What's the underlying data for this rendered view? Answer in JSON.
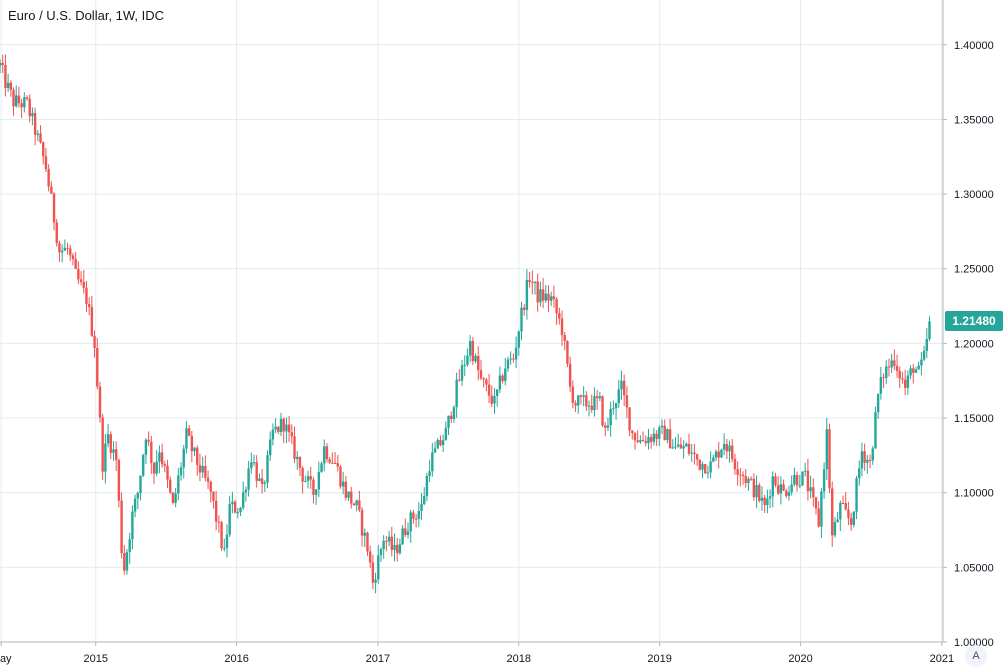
{
  "legend": {
    "title": "Euro / U.S. Dollar, 1W, IDC"
  },
  "price_label": "1.21480",
  "auto_button": "A",
  "colors": {
    "up": "#26a69a",
    "down": "#ef5350",
    "grid": "#e1ecf2",
    "axis": "#b2b5be",
    "text": "#131722"
  },
  "chart_data": {
    "type": "candlestick",
    "title": "Euro / U.S. Dollar, 1W, IDC",
    "xlabel": "",
    "ylabel": "",
    "ylim": [
      1.0,
      1.43
    ],
    "xlim": [
      "2014-04-28",
      "2021-01-04"
    ],
    "grid": true,
    "price_scale": "right",
    "y_ticks": [
      "1.00000",
      "1.05000",
      "1.10000",
      "1.15000",
      "1.20000",
      "1.25000",
      "1.30000",
      "1.35000",
      "1.40000"
    ],
    "x_ticks": [
      {
        "date": "2014-05-01",
        "label": "May"
      },
      {
        "date": "2015-01-01",
        "label": "2015"
      },
      {
        "date": "2016-01-01",
        "label": "2016"
      },
      {
        "date": "2017-01-01",
        "label": "2017"
      },
      {
        "date": "2018-01-01",
        "label": "2018"
      },
      {
        "date": "2019-01-01",
        "label": "2019"
      },
      {
        "date": "2020-01-01",
        "label": "2020"
      },
      {
        "date": "2021-01-01",
        "label": "2021"
      }
    ],
    "last_price": 1.2148,
    "close_path": [
      [
        "2014-04-28",
        1.386
      ],
      [
        "2014-05-12",
        1.375
      ],
      [
        "2014-06-02",
        1.362
      ],
      [
        "2014-07-07",
        1.36
      ],
      [
        "2014-07-28",
        1.343
      ],
      [
        "2014-08-25",
        1.318
      ],
      [
        "2014-09-08",
        1.295
      ],
      [
        "2014-09-29",
        1.262
      ],
      [
        "2014-10-20",
        1.263
      ],
      [
        "2014-11-10",
        1.245
      ],
      [
        "2014-12-08",
        1.23
      ],
      [
        "2014-12-29",
        1.2
      ],
      [
        "2015-01-19",
        1.12
      ],
      [
        "2015-02-02",
        1.138
      ],
      [
        "2015-02-23",
        1.122
      ],
      [
        "2015-03-09",
        1.063
      ],
      [
        "2015-03-16",
        1.05
      ],
      [
        "2015-04-06",
        1.085
      ],
      [
        "2015-04-20",
        1.1
      ],
      [
        "2015-05-11",
        1.14
      ],
      [
        "2015-06-01",
        1.115
      ],
      [
        "2015-06-15",
        1.13
      ],
      [
        "2015-07-20",
        1.09
      ],
      [
        "2015-08-24",
        1.138
      ],
      [
        "2015-09-21",
        1.12
      ],
      [
        "2015-10-26",
        1.1
      ],
      [
        "2015-11-30",
        1.058
      ],
      [
        "2015-12-14",
        1.09
      ],
      [
        "2016-01-11",
        1.09
      ],
      [
        "2016-02-08",
        1.125
      ],
      [
        "2016-03-07",
        1.1
      ],
      [
        "2016-04-04",
        1.14
      ],
      [
        "2016-05-02",
        1.147
      ],
      [
        "2016-06-20",
        1.112
      ],
      [
        "2016-07-18",
        1.1
      ],
      [
        "2016-08-15",
        1.13
      ],
      [
        "2016-09-12",
        1.12
      ],
      [
        "2016-10-10",
        1.1
      ],
      [
        "2016-11-07",
        1.09
      ],
      [
        "2016-12-05",
        1.063
      ],
      [
        "2016-12-19",
        1.04
      ],
      [
        "2017-01-16",
        1.07
      ],
      [
        "2017-02-13",
        1.06
      ],
      [
        "2017-03-20",
        1.08
      ],
      [
        "2017-04-24",
        1.09
      ],
      [
        "2017-05-15",
        1.12
      ],
      [
        "2017-06-26",
        1.14
      ],
      [
        "2017-07-24",
        1.17
      ],
      [
        "2017-08-28",
        1.2
      ],
      [
        "2017-09-25",
        1.175
      ],
      [
        "2017-10-30",
        1.16
      ],
      [
        "2017-11-27",
        1.185
      ],
      [
        "2017-12-18",
        1.19
      ],
      [
        "2018-01-08",
        1.22
      ],
      [
        "2018-01-29",
        1.245
      ],
      [
        "2018-02-19",
        1.232
      ],
      [
        "2018-03-26",
        1.23
      ],
      [
        "2018-04-23",
        1.21
      ],
      [
        "2018-05-14",
        1.17
      ],
      [
        "2018-05-28",
        1.16
      ],
      [
        "2018-06-25",
        1.16
      ],
      [
        "2018-07-30",
        1.16
      ],
      [
        "2018-08-13",
        1.14
      ],
      [
        "2018-09-03",
        1.16
      ],
      [
        "2018-09-24",
        1.17
      ],
      [
        "2018-10-22",
        1.14
      ],
      [
        "2018-11-12",
        1.135
      ],
      [
        "2018-12-10",
        1.138
      ],
      [
        "2019-01-14",
        1.14
      ],
      [
        "2019-02-11",
        1.13
      ],
      [
        "2019-03-11",
        1.13
      ],
      [
        "2019-04-15",
        1.12
      ],
      [
        "2019-05-13",
        1.118
      ],
      [
        "2019-06-17",
        1.135
      ],
      [
        "2019-07-15",
        1.12
      ],
      [
        "2019-08-12",
        1.11
      ],
      [
        "2019-09-09",
        1.1
      ],
      [
        "2019-09-30",
        1.09
      ],
      [
        "2019-10-21",
        1.11
      ],
      [
        "2019-11-18",
        1.1
      ],
      [
        "2019-12-16",
        1.11
      ],
      [
        "2020-01-13",
        1.11
      ],
      [
        "2020-02-17",
        1.08
      ],
      [
        "2020-03-09",
        1.14
      ],
      [
        "2020-03-23",
        1.07
      ],
      [
        "2020-04-13",
        1.09
      ],
      [
        "2020-05-11",
        1.08
      ],
      [
        "2020-06-08",
        1.128
      ],
      [
        "2020-06-29",
        1.12
      ],
      [
        "2020-07-20",
        1.165
      ],
      [
        "2020-08-03",
        1.18
      ],
      [
        "2020-08-31",
        1.19
      ],
      [
        "2020-09-28",
        1.17
      ],
      [
        "2020-10-19",
        1.185
      ],
      [
        "2020-11-02",
        1.18
      ],
      [
        "2020-11-16",
        1.19
      ],
      [
        "2020-11-30",
        1.2148
      ]
    ]
  }
}
